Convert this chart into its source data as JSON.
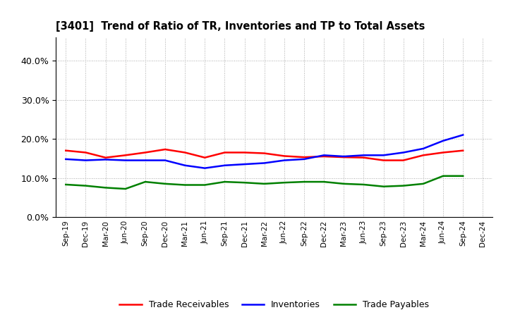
{
  "title": "[3401]  Trend of Ratio of TR, Inventories and TP to Total Assets",
  "x_labels": [
    "Sep-19",
    "Dec-19",
    "Mar-20",
    "Jun-20",
    "Sep-20",
    "Dec-20",
    "Mar-21",
    "Jun-21",
    "Sep-21",
    "Dec-21",
    "Mar-22",
    "Jun-22",
    "Sep-22",
    "Dec-22",
    "Mar-23",
    "Jun-23",
    "Sep-23",
    "Dec-23",
    "Mar-24",
    "Jun-24",
    "Sep-24",
    "Dec-24"
  ],
  "trade_receivables": [
    17.0,
    16.5,
    15.2,
    15.8,
    16.5,
    17.3,
    16.5,
    15.2,
    16.5,
    16.5,
    16.3,
    15.6,
    15.3,
    15.5,
    15.3,
    15.2,
    14.5,
    14.5,
    15.8,
    16.5,
    17.0,
    null
  ],
  "inventories": [
    14.8,
    14.5,
    14.7,
    14.5,
    14.5,
    14.5,
    13.2,
    12.5,
    13.2,
    13.5,
    13.8,
    14.5,
    14.8,
    15.8,
    15.5,
    15.8,
    15.8,
    16.5,
    17.5,
    19.5,
    21.0,
    null
  ],
  "trade_payables": [
    8.3,
    8.0,
    7.5,
    7.2,
    9.0,
    8.5,
    8.2,
    8.2,
    9.0,
    8.8,
    8.5,
    8.8,
    9.0,
    9.0,
    8.5,
    8.3,
    7.8,
    8.0,
    8.5,
    10.5,
    10.5,
    null
  ],
  "tr_color": "#ff0000",
  "inv_color": "#0000ff",
  "tp_color": "#008000",
  "ylim": [
    0.0,
    46.0
  ],
  "yticks": [
    0.0,
    10.0,
    20.0,
    30.0,
    40.0
  ],
  "background_color": "#ffffff",
  "grid_color": "#aaaaaa",
  "legend_labels": [
    "Trade Receivables",
    "Inventories",
    "Trade Payables"
  ]
}
